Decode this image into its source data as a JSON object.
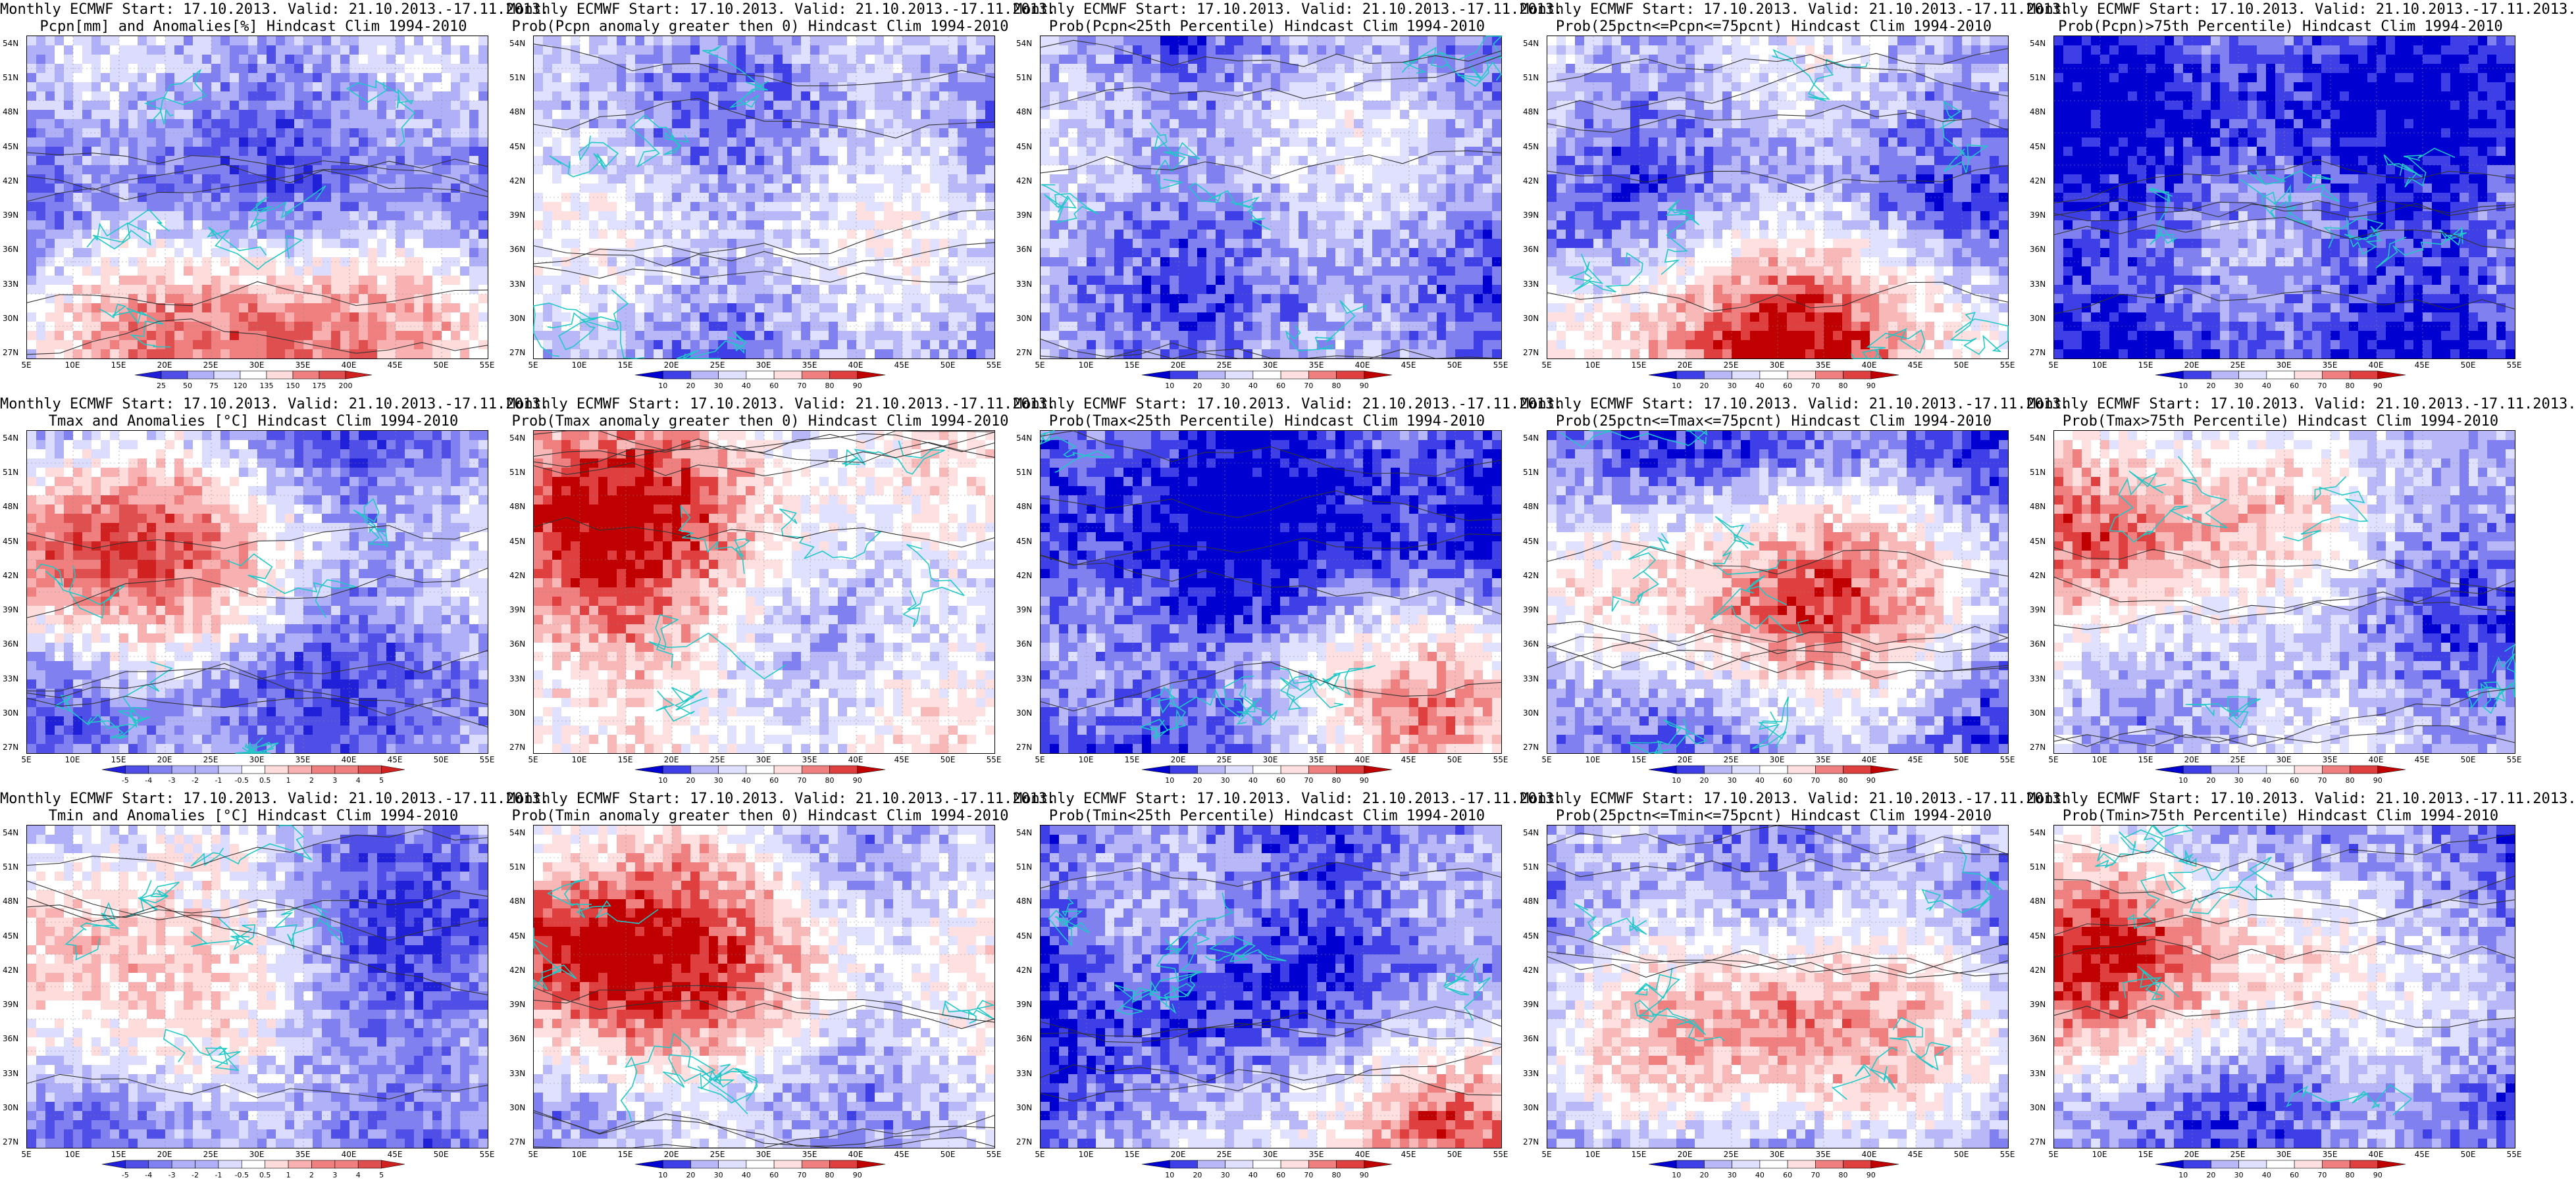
{
  "palettes": {
    "prob": [
      "#0000d0",
      "#3f3fe8",
      "#8080f0",
      "#b8b8f8",
      "#e0e0ff",
      "#ffffff",
      "#ffe0e0",
      "#f8b8b8",
      "#f08080",
      "#e03f3f",
      "#c00000"
    ],
    "anom": [
      "#2020d8",
      "#4f4fe8",
      "#8080f0",
      "#b0b0f8",
      "#dcdcff",
      "#ffffff",
      "#ffdcdc",
      "#f8b0b0",
      "#f08080",
      "#e04f4f",
      "#d02020"
    ]
  },
  "x_tick_labels": [
    "5E",
    "10E",
    "15E",
    "20E",
    "25E",
    "30E",
    "35E",
    "40E",
    "45E",
    "50E",
    "55E"
  ],
  "y_tick_labels": [
    "54N",
    "51N",
    "48N",
    "45N",
    "42N",
    "39N",
    "36N",
    "33N",
    "30N",
    "27N"
  ],
  "colorbar_labels": {
    "pcpn": [
      "25",
      "50",
      "75",
      "120",
      "135",
      "150",
      "175",
      "200"
    ],
    "prob": [
      "10",
      "20",
      "30",
      "40",
      "60",
      "70",
      "80",
      "90"
    ],
    "temp": [
      "-5",
      "-4",
      "-3",
      "-2",
      "-1",
      "-0.5",
      "0.5",
      "1",
      "2",
      "3",
      "4",
      "5"
    ]
  },
  "panels": [
    {
      "title_line1": "Monthly ECMWF Start: 17.10.2013. Valid: 21.10.2013.-17.11.2013.",
      "title_line2": "Pcpn[mm] and Anomalies[%] Hindcast Clim 1994-2010",
      "palette": "anom",
      "colorbar": "pcpn",
      "warm_zone": "south",
      "intensity": 0.55
    },
    {
      "title_line1": "Monthly ECMWF Start: 17.10.2013. Valid: 21.10.2013.-17.11.2013.",
      "title_line2": "Prob(Pcpn anomaly greater then 0) Hindcast Clim 1994-2010",
      "palette": "prob",
      "colorbar": "prob",
      "warm_zone": "none",
      "intensity": 0.35
    },
    {
      "title_line1": "Monthly ECMWF Start: 17.10.2013. Valid: 21.10.2013.-17.11.2013.",
      "title_line2": "Prob(Pcpn<25th Percentile) Hindcast Clim 1994-2010",
      "palette": "prob",
      "colorbar": "prob",
      "warm_zone": "none",
      "intensity": 0.3
    },
    {
      "title_line1": "Monthly ECMWF Start: 17.10.2013. Valid: 21.10.2013.-17.11.2013.",
      "title_line2": "Prob(25pctn<=Pcpn<=75pcnt) Hindcast Clim 1994-2010",
      "palette": "prob",
      "colorbar": "prob",
      "warm_zone": "south",
      "intensity": 0.6
    },
    {
      "title_line1": "Monthly ECMWF Start: 17.10.2013. Valid: 21.10.2013.-17.11.2013.",
      "title_line2": "Prob(Pcpn)>75th Percentile) Hindcast Clim 1994-2010",
      "palette": "prob",
      "colorbar": "prob",
      "warm_zone": "none",
      "intensity": 0.15
    },
    {
      "title_line1": "Monthly ECMWF Start: 17.10.2013. Valid: 21.10.2013.-17.11.2013.",
      "title_line2": "Tmax and Anomalies [°C] Hindcast Clim 1994-2010",
      "palette": "anom",
      "colorbar": "temp",
      "warm_zone": "west",
      "intensity": 0.55
    },
    {
      "title_line1": "Monthly ECMWF Start: 17.10.2013. Valid: 21.10.2013.-17.11.2013.",
      "title_line2": "Prob(Tmax anomaly greater then 0) Hindcast Clim 1994-2010",
      "palette": "prob",
      "colorbar": "prob",
      "warm_zone": "west",
      "intensity": 0.85
    },
    {
      "title_line1": "Monthly ECMWF Start: 17.10.2013. Valid: 21.10.2013.-17.11.2013.",
      "title_line2": "Prob(Tmax<25th Percentile) Hindcast Clim 1994-2010",
      "palette": "prob",
      "colorbar": "prob",
      "warm_zone": "southeast",
      "intensity": 0.25
    },
    {
      "title_line1": "Monthly ECMWF Start: 17.10.2013. Valid: 21.10.2013.-17.11.2013.",
      "title_line2": "Prob(25pctn<=Tmax<=75pcnt) Hindcast Clim 1994-2010",
      "palette": "prob",
      "colorbar": "prob",
      "warm_zone": "center",
      "intensity": 0.5
    },
    {
      "title_line1": "Monthly ECMWF Start: 17.10.2013. Valid: 21.10.2013.-17.11.2013.",
      "title_line2": "Prob(Tmax>75th Percentile) Hindcast Clim 1994-2010",
      "palette": "prob",
      "colorbar": "prob",
      "warm_zone": "west",
      "intensity": 0.6
    },
    {
      "title_line1": "Monthly ECMWF Start: 17.10.2013. Valid: 21.10.2013.-17.11.2013.",
      "title_line2": "Tmin and Anomalies [°C] Hindcast Clim 1994-2010",
      "palette": "anom",
      "colorbar": "temp",
      "warm_zone": "west",
      "intensity": 0.5
    },
    {
      "title_line1": "Monthly ECMWF Start: 17.10.2013. Valid: 21.10.2013.-17.11.2013.",
      "title_line2": "Prob(Tmin anomaly greater then 0) Hindcast Clim 1994-2010",
      "palette": "prob",
      "colorbar": "prob",
      "warm_zone": "west",
      "intensity": 0.85
    },
    {
      "title_line1": "Monthly ECMWF Start: 17.10.2013. Valid: 21.10.2013.-17.11.2013.",
      "title_line2": "Prob(Tmin<25th Percentile) Hindcast Clim 1994-2010",
      "palette": "prob",
      "colorbar": "prob",
      "warm_zone": "southeast",
      "intensity": 0.35
    },
    {
      "title_line1": "Monthly ECMWF Start: 17.10.2013. Valid: 21.10.2013.-17.11.2013.",
      "title_line2": "Prob(25pctn<=Tmin<=75pcnt) Hindcast Clim 1994-2010",
      "palette": "prob",
      "colorbar": "prob",
      "warm_zone": "center",
      "intensity": 0.5
    },
    {
      "title_line1": "Monthly ECMWF Start: 17.10.2013. Valid: 21.10.2013.-17.11.2013.",
      "title_line2": "Prob(Tmin>75th Percentile) Hindcast Clim 1994-2010",
      "palette": "prob",
      "colorbar": "prob",
      "warm_zone": "west",
      "intensity": 0.6
    }
  ]
}
